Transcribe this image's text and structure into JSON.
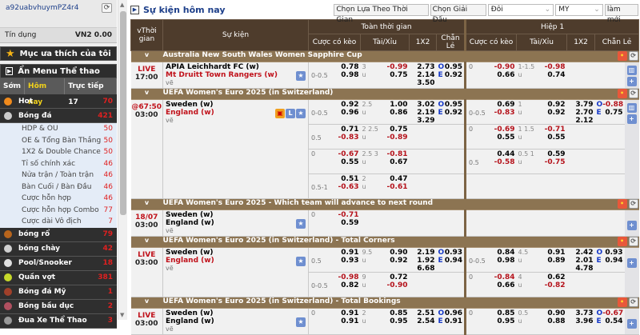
{
  "sidebar": {
    "username": "a92uabvhuymPZ4r4",
    "credit_label": "Tín dụng",
    "credit_value": "VN2 0.00",
    "favorites": "Mục ưa thích của tôi",
    "hide_menu": "Ẩn Menu Thể thao",
    "tabs": [
      {
        "label": "Sớm"
      },
      {
        "label": "Hôm nay",
        "active": true
      },
      {
        "label": "Trực tiếp 17"
      }
    ],
    "top": [
      {
        "label": "Hot",
        "count": "70",
        "icon": "fire-icon",
        "color": "#f08a1c"
      },
      {
        "label": "Bóng đá",
        "count": "421",
        "icon": "soccer-ball-icon",
        "color": "#cccccc"
      }
    ],
    "soccer_sub": [
      {
        "label": "HDP & OU",
        "count": "50"
      },
      {
        "label": "OE & Tổng Bàn Thắng",
        "count": "50"
      },
      {
        "label": "1X2 & Double Chance",
        "count": "50"
      },
      {
        "label": "Tỉ số chính xác",
        "count": "46"
      },
      {
        "label": "Nửa trận / Toàn trận",
        "count": "46"
      },
      {
        "label": "Bàn Cuối / Bàn Đầu",
        "count": "46"
      },
      {
        "label": "Cược hỗn hợp",
        "count": "46"
      },
      {
        "label": "Cược hỗn hợp Combo",
        "count": "77"
      },
      {
        "label": "Cược dài Vô địch",
        "count": "7"
      }
    ],
    "sports": [
      {
        "label": "bóng rổ",
        "count": "79",
        "icon": "basketball-icon",
        "color": "#b8651c"
      },
      {
        "label": "bóng chày",
        "count": "42",
        "icon": "baseball-icon",
        "color": "#cfcfcf"
      },
      {
        "label": "Pool/Snooker",
        "count": "18",
        "icon": "pool-ball-icon",
        "color": "#e0e0e0"
      },
      {
        "label": "Quần vợt",
        "count": "381",
        "icon": "tennis-ball-icon",
        "color": "#c6d82a"
      },
      {
        "label": "Bóng đá Mỹ",
        "count": "1",
        "icon": "american-football-icon",
        "color": "#a0402a"
      },
      {
        "label": "Bóng bầu dục",
        "count": "2",
        "icon": "rugby-ball-icon",
        "color": "#b05060"
      },
      {
        "label": "Đua Xe Thể Thao",
        "count": "3",
        "icon": "motorsport-icon",
        "color": "#999999"
      }
    ]
  },
  "main": {
    "title": "Sự kiện hôm nay",
    "filter_time": "Chọn Lựa Theo Thời Gian",
    "filter_league": "Chọn Giải Đấu",
    "odds_view": "Đôi",
    "odds_type": "MY",
    "refresh": "làm mới",
    "headers": {
      "time": "Thời gian",
      "event": "Sự kiện",
      "full_time": "Toàn thời gian",
      "first_half": "Hiệp 1",
      "hdp": "Cược có kèo",
      "ou": "Tài/Xỉu",
      "x12": "1X2",
      "oe": "Chẵn Lẻ"
    },
    "labels": {
      "under": "u",
      "odd": "O",
      "even": "E",
      "collapse": "v"
    },
    "colors": {
      "header": "#4e3c2c",
      "league": "#8c7452",
      "negative": "#b5121b",
      "live": "#c0111a"
    }
  },
  "leagues": [
    {
      "name": "Australia New South Wales Women Sapphire Cup",
      "matches": [
        {
          "status": "LIVE",
          "time": "17:00",
          "home": "APIA Leichhardt FC (w)",
          "away": "Mt Druitt Town Rangers (w)",
          "draw": "vẽ",
          "red_team": "away",
          "icons": [
            "star-icon"
          ],
          "side": [
            "stats-icon",
            "plus-icon"
          ],
          "lines": [
            {
              "ft": {
                "hdp": {
                  "line": "0-0.5",
                  "side": "away",
                  "home": "0.78",
                  "away": "0.98"
                },
                "ou": {
                  "line": "3",
                  "over": "-0.99",
                  "under": "0.75"
                },
                "x12": [
                  "2.73",
                  "2.14",
                  "3.50"
                ],
                "oe": {
                  "o": "0.95",
                  "e": "0.92"
                }
              },
              "h1": {
                "hdp": {
                  "line": "0",
                  "side": "home",
                  "home": "-0.90",
                  "away": "0.66"
                },
                "ou": {
                  "line": "1-1.5",
                  "over": "-0.98",
                  "under": "0.74"
                }
              }
            }
          ]
        }
      ]
    },
    {
      "name": "UEFA Women's Euro 2025 (in Switzerland)",
      "matches": [
        {
          "status": "@67:50",
          "time": "03:00",
          "home": "Sweden (w)",
          "away": "England (w)",
          "draw": "vẽ",
          "red_team": "away",
          "icons": [
            "tv-icon",
            "live-icon",
            "star-icon"
          ],
          "side": [
            "stats-icon",
            "plus-icon"
          ],
          "lines": [
            {
              "ft": {
                "hdp": {
                  "line": "0-0.5",
                  "side": "away",
                  "home": "0.92",
                  "away": "0.96"
                },
                "ou": {
                  "line": "2.5",
                  "over": "1.00",
                  "under": "0.86"
                },
                "x12": [
                  "3.02",
                  "2.19",
                  "3.29"
                ],
                "oe": {
                  "o": "0.95",
                  "e": "0.92"
                }
              },
              "h1": {
                "hdp": {
                  "line": "0-0.5",
                  "side": "away",
                  "home": "0.69",
                  "away": "-0.83"
                },
                "ou": {
                  "line": "1",
                  "over": "0.92",
                  "under": "0.92"
                },
                "x12": [
                  "3.79",
                  "2.70",
                  "2.12"
                ],
                "oe": {
                  "o": "-0.88",
                  "e": "0.75"
                }
              }
            },
            {
              "ft": {
                "hdp": {
                  "line": "0.5",
                  "side": "away",
                  "home": "0.71",
                  "away": "-0.83"
                },
                "ou": {
                  "line": "2 2.5",
                  "over": "0.75",
                  "under": "-0.89"
                }
              },
              "h1": {
                "hdp": {
                  "line": "0",
                  "side": "home",
                  "home": "-0.69",
                  "away": "0.55"
                },
                "ou": {
                  "line": "1 1.5",
                  "over": "-0.71",
                  "under": "0.55"
                }
              }
            },
            {
              "ft": {
                "hdp": {
                  "line": "0",
                  "side": "home",
                  "home": "-0.67",
                  "away": "0.55"
                },
                "ou": {
                  "line": "2.5 3",
                  "over": "-0.81",
                  "under": "0.67"
                }
              },
              "h1": {
                "hdp": {
                  "line": "0.5",
                  "side": "away",
                  "home": "0.44",
                  "away": "-0.58"
                },
                "ou": {
                  "line": "0.5 1",
                  "over": "0.59",
                  "under": "-0.75"
                }
              }
            },
            {
              "ft": {
                "hdp": {
                  "line": "0.5-1",
                  "side": "away",
                  "home": "0.51",
                  "away": "-0.63"
                },
                "ou": {
                  "line": "2",
                  "over": "0.47",
                  "under": "-0.61"
                }
              },
              "h1": {}
            }
          ]
        }
      ]
    },
    {
      "name": "UEFA Women's Euro 2025 - Which team will advance to next round",
      "matches": [
        {
          "status": "18/07",
          "time": "03:00",
          "home": "Sweden (w)",
          "away": "England (w)",
          "draw": "vẽ",
          "red_team": null,
          "icons": [
            "star-icon"
          ],
          "side": [
            "plus-icon"
          ],
          "lines": [
            {
              "ft": {
                "hdp": {
                  "line": "0",
                  "side": "home",
                  "home": "-0.71",
                  "away": "0.59"
                }
              },
              "h1": {}
            }
          ]
        }
      ]
    },
    {
      "name": "UEFA Women's Euro 2025 (in Switzerland) - Total Corners",
      "matches": [
        {
          "status": "LIVE",
          "time": "03:00",
          "home": "Sweden (w)",
          "away": "England (w)",
          "draw": "vẽ",
          "red_team": "away",
          "icons": [
            "star-icon"
          ],
          "side": [
            "plus-icon"
          ],
          "lines": [
            {
              "ft": {
                "hdp": {
                  "line": "0.5",
                  "side": "away",
                  "home": "0.91",
                  "away": "0.93"
                },
                "ou": {
                  "line": "9.5",
                  "over": "0.90",
                  "under": "0.92"
                },
                "x12": [
                  "2.19",
                  "1.92",
                  "6.68"
                ],
                "oe": {
                  "o": "0.93",
                  "e": "0.94"
                }
              },
              "h1": {
                "hdp": {
                  "line": "0-0.5",
                  "side": "away",
                  "home": "0.84",
                  "away": "0.98"
                },
                "ou": {
                  "line": "4.5",
                  "over": "0.91",
                  "under": "0.89"
                },
                "x12": [
                  "2.42",
                  "2.01",
                  "4.78"
                ],
                "oe": {
                  "o": "0.93",
                  "e": "0.94"
                }
              }
            },
            {
              "ft": {
                "hdp": {
                  "line": "0-0.5",
                  "side": "away",
                  "home": "-0.98",
                  "away": "0.82"
                },
                "ou": {
                  "line": "9",
                  "over": "0.72",
                  "under": "-0.90"
                }
              },
              "h1": {
                "hdp": {
                  "line": "0",
                  "side": "home",
                  "home": "-0.84",
                  "away": "0.66"
                },
                "ou": {
                  "line": "4",
                  "over": "0.62",
                  "under": "-0.82"
                }
              }
            }
          ]
        }
      ]
    },
    {
      "name": "UEFA Women's Euro 2025 (in Switzerland) - Total Bookings",
      "matches": [
        {
          "status": "LIVE",
          "time": "03:00",
          "home": "Sweden (w)",
          "away": "England (w)",
          "draw": "vẽ",
          "red_team": null,
          "icons": [
            "star-icon"
          ],
          "side": [
            "plus-icon"
          ],
          "lines": [
            {
              "ft": {
                "hdp": {
                  "line": "0",
                  "side": "home",
                  "home": "0.91",
                  "away": "0.91"
                },
                "ou": {
                  "line": "2",
                  "over": "0.85",
                  "under": "0.95"
                },
                "x12": [
                  "2.51",
                  "2.54"
                ],
                "oe": {
                  "o": "0.96",
                  "e": "0.91"
                }
              },
              "h1": {
                "hdp": {
                  "line": "0",
                  "side": "home",
                  "home": "0.85",
                  "away": "0.95"
                },
                "ou": {
                  "line": "0.5",
                  "over": "0.90",
                  "under": "0.88"
                },
                "x12": [
                  "3.73",
                  "3.96"
                ],
                "oe": {
                  "o": "-0.67",
                  "e": "0.54"
                }
              }
            }
          ]
        }
      ]
    }
  ]
}
